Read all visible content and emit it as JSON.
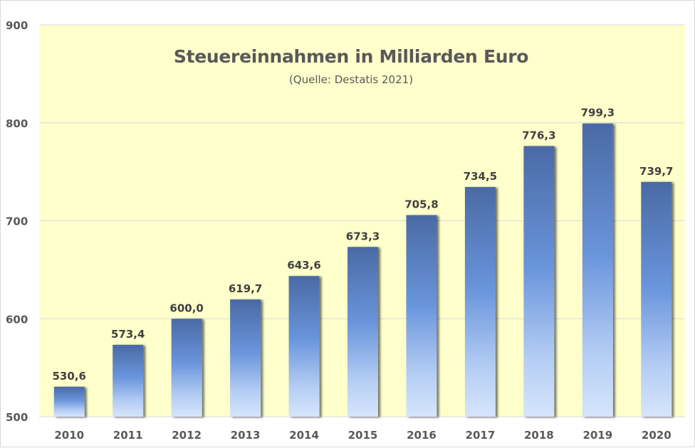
{
  "chart_data": {
    "type": "bar",
    "title": "Steuereinnahmen in Milliarden Euro",
    "subtitle": "(Quelle: Destatis 2021)",
    "xlabel": "",
    "ylabel": "",
    "categories": [
      "2010",
      "2011",
      "2012",
      "2013",
      "2014",
      "2015",
      "2016",
      "2017",
      "2018",
      "2019",
      "2020"
    ],
    "values": [
      530.6,
      573.4,
      600.0,
      619.7,
      643.6,
      673.3,
      705.8,
      734.5,
      776.3,
      799.3,
      739.7
    ],
    "data_labels": [
      "530,6",
      "573,4",
      "600,0",
      "619,7",
      "643,6",
      "673,3",
      "705,8",
      "734,5",
      "776,3",
      "799,3",
      "739,7"
    ],
    "ylim": [
      500,
      900
    ],
    "yticks": [
      500,
      600,
      700,
      800,
      900
    ],
    "ytick_labels": [
      "500",
      "600",
      "700",
      "800",
      "900"
    ],
    "grid": true,
    "legend": "none",
    "colors": {
      "plot_background": "#ffffcc",
      "bar_top": "#4a6aa5",
      "bar_mid": "#6a95dc",
      "bar_bottom": "#d5e5fb",
      "gridline": "#d9d9d9",
      "text": "#595959"
    }
  }
}
